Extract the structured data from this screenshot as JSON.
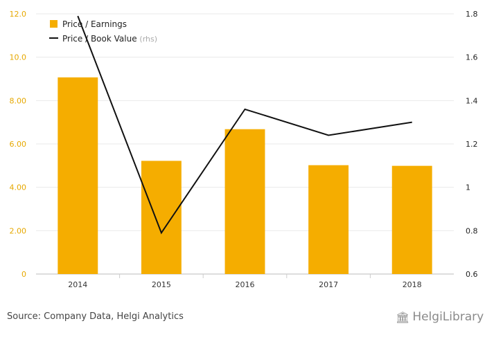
{
  "chart_data": {
    "type": "bar",
    "categories": [
      "2014",
      "2015",
      "2016",
      "2017",
      "2018"
    ],
    "series": [
      {
        "name": "Price / Earnings",
        "type": "bar",
        "axis": "left",
        "color": "#f5ad00",
        "values": [
          9.07,
          5.22,
          6.68,
          5.02,
          4.99
        ]
      },
      {
        "name": "Price / Book Value",
        "type": "line",
        "axis": "right",
        "color": "#111111",
        "values": [
          1.79,
          0.79,
          1.36,
          1.24,
          1.3
        ]
      }
    ],
    "yleft": {
      "ylim": [
        0,
        12
      ],
      "ticks": [
        "0",
        "2.00",
        "4.00",
        "6.00",
        "8.00",
        "10.0",
        "12.0"
      ],
      "tick_color": "#e6a800"
    },
    "yright": {
      "ylim": [
        0.6,
        1.8
      ],
      "ticks": [
        "0.6",
        "0.8",
        "1",
        "1.2",
        "1.4",
        "1.6",
        "1.8"
      ]
    },
    "legend": {
      "placement": "top-left",
      "rhs_suffix": "(rhs)"
    },
    "grid": true
  },
  "footer": {
    "source": "Source: Company Data, Helgi Analytics",
    "logo_text": "HelgiLibrary"
  }
}
